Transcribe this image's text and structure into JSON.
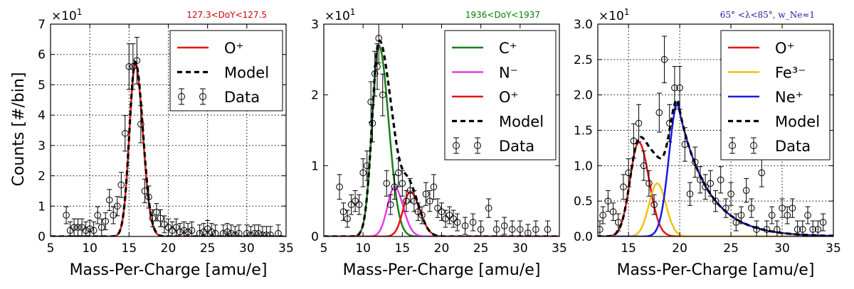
{
  "figure": {
    "ylabel": "Counts [#/bin]",
    "xlabel": "Mass-Per-Charge [amu/e]"
  },
  "chart_data": [
    {
      "type": "line",
      "xlabel": "Mass-Per-Charge [amu/e]",
      "ylabel": "Counts [#/bin]",
      "multiplier_label": "×10",
      "multiplier_exp": "1",
      "annotation": "127.3<DoY<127.5",
      "annotation_color": "#cc0000",
      "xlim": [
        5,
        35
      ],
      "ylim": [
        0,
        7
      ],
      "xticks": [
        5,
        10,
        15,
        20,
        25,
        30,
        35
      ],
      "yticks": [
        0,
        1,
        2,
        3,
        4,
        5,
        6,
        7
      ],
      "grid": true,
      "legend_position": "top-right",
      "series": [
        {
          "name": "O⁺",
          "color": "#e8140f",
          "style": "solid",
          "model": {
            "curves": [
              {
                "A": 5.7,
                "mu": 15.8,
                "sL": 0.75,
                "sR": 0.95
              }
            ]
          }
        },
        {
          "name": "Model",
          "color": "#000000",
          "style": "dashed",
          "model": {
            "curves": [
              {
                "A": 5.75,
                "mu": 15.8,
                "sL": 0.75,
                "sR": 0.97
              }
            ]
          }
        },
        {
          "name": "Data",
          "color": "#000000",
          "style": "errorbar",
          "x": [
            7,
            7.5,
            8,
            8.5,
            9,
            9.5,
            10,
            10.5,
            11,
            11.5,
            12,
            12.5,
            13,
            13.5,
            14,
            14.5,
            15,
            15.5,
            16,
            16.5,
            17,
            17.5,
            18,
            18.5,
            19,
            19.5,
            20,
            20.5,
            21,
            21.5,
            22,
            22.5,
            23,
            24,
            24.5,
            25,
            25.5,
            26,
            27,
            27.5,
            28,
            28.5,
            29,
            30,
            30.5,
            31,
            31.5,
            32,
            32.5,
            33,
            34
          ],
          "y": [
            0.7,
            0.2,
            0.3,
            0.3,
            0.3,
            0.2,
            0.25,
            0.2,
            0.7,
            0.3,
            0.5,
            1.2,
            0.7,
            1.0,
            1.7,
            3.4,
            5.6,
            5.6,
            5.8,
            3.7,
            1.5,
            1.3,
            0.6,
            0.8,
            0.6,
            0.4,
            0.3,
            0.2,
            0.3,
            0.15,
            0.2,
            0.15,
            0.2,
            0.1,
            0.15,
            0.25,
            0.15,
            0.1,
            0.1,
            0.15,
            0.1,
            0.05,
            0.1,
            0.1,
            0.05,
            0.1,
            0.1,
            0.05,
            0.05,
            0.05,
            0.1
          ]
        }
      ]
    },
    {
      "type": "line",
      "xlabel": "Mass-Per-Charge [amu/e]",
      "multiplier_label": "×10",
      "multiplier_exp": "1",
      "annotation": "1936<DoY<1937",
      "annotation_color": "#008000",
      "xlim": [
        5,
        35
      ],
      "ylim": [
        0,
        3
      ],
      "xticks": [
        5,
        10,
        15,
        20,
        25,
        30,
        35
      ],
      "yticks": [
        0,
        1,
        2,
        3
      ],
      "grid": false,
      "legend_position": "top-right",
      "series": [
        {
          "name": "C⁺",
          "color": "#1a801a",
          "style": "solid",
          "model": {
            "curves": [
              {
                "A": 2.7,
                "mu": 12.0,
                "sL": 0.85,
                "sR": 1.25
              }
            ]
          }
        },
        {
          "name": "N⁻",
          "color": "#e63ce6",
          "style": "solid",
          "model": {
            "curves": [
              {
                "A": 0.7,
                "mu": 14.0,
                "sL": 0.9,
                "sR": 1.1
              }
            ]
          }
        },
        {
          "name": "O⁺",
          "color": "#e8140f",
          "style": "solid",
          "model": {
            "curves": [
              {
                "A": 0.63,
                "mu": 16.0,
                "sL": 0.9,
                "sR": 1.2
              }
            ]
          }
        },
        {
          "name": "Model",
          "color": "#000000",
          "style": "dashed",
          "model": {
            "curves": [
              {
                "A": 2.7,
                "mu": 12.0,
                "sL": 0.85,
                "sR": 1.25
              },
              {
                "A": 0.7,
                "mu": 14.0,
                "sL": 0.9,
                "sR": 1.1
              },
              {
                "A": 0.63,
                "mu": 16.0,
                "sL": 0.9,
                "sR": 1.2
              }
            ]
          }
        },
        {
          "name": "Data",
          "color": "#000000",
          "style": "errorbar",
          "x": [
            7,
            7.5,
            8,
            8.5,
            9,
            9.5,
            10,
            10.5,
            11,
            11.2,
            11.5,
            11.8,
            12,
            12.5,
            13,
            13.5,
            14,
            14.5,
            15,
            15.5,
            16,
            16.5,
            17,
            17.5,
            18,
            18.5,
            19,
            19.5,
            20,
            20.5,
            21,
            21.5,
            22,
            23,
            24,
            25,
            26,
            27,
            28,
            29,
            30,
            31,
            32,
            33.5
          ],
          "y": [
            0.7,
            0.35,
            0.25,
            0.45,
            0.5,
            0.45,
            0.9,
            1.0,
            1.9,
            1.6,
            2.3,
            2.4,
            2.8,
            2.0,
            0.75,
            0.45,
            0.7,
            0.9,
            0.75,
            0.5,
            0.65,
            0.5,
            0.35,
            0.3,
            0.6,
            0.5,
            0.7,
            0.4,
            0.35,
            0.25,
            0.3,
            0.25,
            0.2,
            0.15,
            0.2,
            0.1,
            0.4,
            0.1,
            0.15,
            0.1,
            0.1,
            0.05,
            0.1,
            0.1
          ]
        }
      ]
    },
    {
      "type": "line",
      "xlabel": "Mass-Per-Charge [amu/e]",
      "multiplier_label": "×10",
      "multiplier_exp": "1",
      "annotation": "65° <λ<85°, w_Ne≈1",
      "annotation_color": "#1a1aa0",
      "xlim": [
        12,
        35
      ],
      "ylim": [
        0,
        3.0
      ],
      "xticks": [
        15,
        20,
        25,
        30,
        35
      ],
      "yticks": [
        0.0,
        0.5,
        1.0,
        1.5,
        2.0,
        2.5,
        3.0
      ],
      "grid": true,
      "legend_position": "top-right",
      "series": [
        {
          "name": "O⁺",
          "color": "#e8140f",
          "style": "solid",
          "model": {
            "curves": [
              {
                "A": 1.33,
                "mu": 16.0,
                "sL": 0.85,
                "sR": 1.0
              }
            ]
          }
        },
        {
          "name": "Fe³⁻",
          "color": "#f2c20f",
          "style": "solid",
          "model": {
            "curves": [
              {
                "A": 0.75,
                "mu": 17.8,
                "sL": 0.8,
                "sR": 0.85
              }
            ]
          }
        },
        {
          "name": "Ne⁺",
          "color": "#1a1ae6",
          "style": "solid",
          "model": {
            "curves": [
              {
                "A": 1.88,
                "mu": 19.8,
                "sL": 0.85,
                "tail": 2.8
              }
            ]
          }
        },
        {
          "name": "Model",
          "color": "#000000",
          "style": "dashed",
          "model": {
            "curves": [
              {
                "A": 1.33,
                "mu": 16.0,
                "sL": 0.85,
                "sR": 1.0
              },
              {
                "A": 0.75,
                "mu": 17.8,
                "sL": 0.8,
                "sR": 0.85
              },
              {
                "A": 1.88,
                "mu": 19.8,
                "sL": 0.85,
                "tail": 2.8
              }
            ]
          }
        },
        {
          "name": "Data",
          "color": "#000000",
          "style": "errorbar",
          "x": [
            12.2,
            12.5,
            13,
            13.5,
            14,
            14.5,
            15,
            15.5,
            16,
            16.5,
            17,
            17.5,
            18,
            18.5,
            19,
            19.5,
            20,
            20.5,
            21,
            21.5,
            22,
            22.5,
            23,
            23.5,
            24,
            24.5,
            25,
            25.5,
            26,
            26.5,
            27,
            27.5,
            28,
            28.5,
            29,
            29.5,
            30,
            30.5,
            31,
            31.5,
            32,
            32.5,
            33,
            33.5,
            34
          ],
          "y": [
            0.1,
            0.3,
            0.5,
            0.35,
            0.2,
            0.7,
            0.9,
            1.35,
            1.6,
            1.0,
            0.75,
            0.45,
            1.75,
            2.5,
            1.6,
            2.1,
            2.1,
            1.3,
            0.6,
            1.05,
            0.8,
            0.7,
            0.75,
            0.5,
            0.8,
            0.4,
            0.6,
            0.2,
            0.3,
            0.65,
            0.4,
            0.1,
            0.9,
            0.1,
            0.3,
            0.1,
            0.4,
            0.3,
            0.4,
            0.1,
            0.1,
            0.3,
            0.1,
            0.1,
            0.2
          ]
        }
      ]
    }
  ]
}
